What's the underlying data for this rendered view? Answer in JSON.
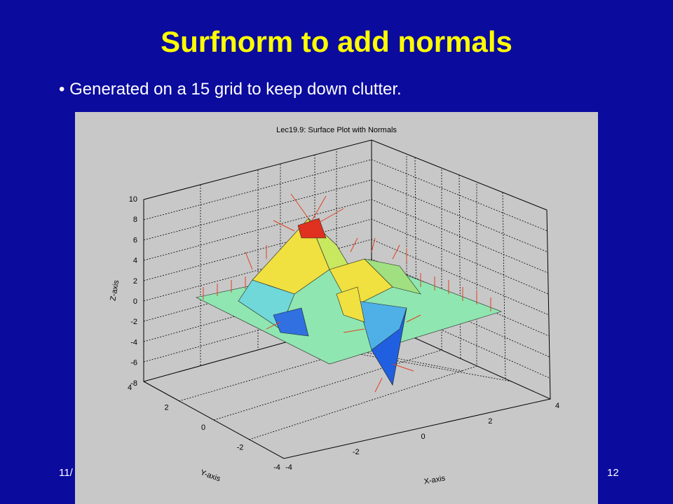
{
  "slide": {
    "title": "Surfnorm to add normals",
    "bullet": "Generated on a 15 grid to keep down clutter.",
    "footer_left": "11/",
    "page_number": "12"
  },
  "figure": {
    "title": "Lec19.9: Surface Plot with Normals",
    "x_label": "X-axis",
    "y_label": "Y-axis",
    "z_label": "Z-axis",
    "z_ticks": [
      "10",
      "8",
      "6",
      "4",
      "2",
      "0",
      "-2",
      "-4",
      "-6",
      "-8"
    ],
    "y_ticks": [
      "4",
      "2",
      "0",
      "-2",
      "-4"
    ],
    "x_ticks": [
      "-4",
      "-2",
      "0",
      "2",
      "4"
    ]
  }
}
